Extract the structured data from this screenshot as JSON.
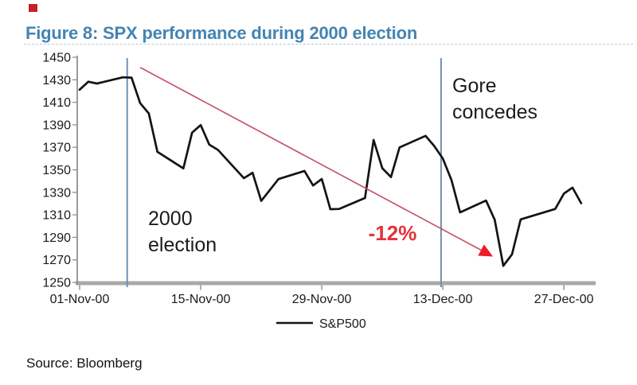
{
  "header": {
    "title": "Figure 8: SPX performance during 2000 election"
  },
  "footer": {
    "source": "Source: Bloomberg"
  },
  "legend": {
    "label": "S&P500"
  },
  "colors": {
    "title_blue": "#4484b2",
    "event_line_blue": "#6e93b4",
    "trend_red": "#c5566a",
    "arrow_red": "#ee1c25",
    "pct_label_red": "#e4323a",
    "axis_gray": "#a9a9a9",
    "axis_dark_gray": "#8f8f8f",
    "series_black": "#141414",
    "tick_text": "#1a1a1a",
    "annotation_text": "#1c1c1c"
  },
  "chart_data": {
    "type": "line",
    "title": "Figure 8: SPX performance during 2000 election",
    "xlabel": "",
    "ylabel": "",
    "ylim": [
      1250,
      1450
    ],
    "grid": false,
    "legend_position": "bottom",
    "yticks": [
      1450,
      1430,
      1410,
      1390,
      1370,
      1350,
      1330,
      1310,
      1290,
      1270,
      1250
    ],
    "xticks": [
      {
        "label": "01-Nov-00",
        "day": 0
      },
      {
        "label": "15-Nov-00",
        "day": 14
      },
      {
        "label": "29-Nov-00",
        "day": 28
      },
      {
        "label": "13-Dec-00",
        "day": 42
      },
      {
        "label": "27-Dec-00",
        "day": 56
      }
    ],
    "series": [
      {
        "name": "S&P500",
        "dates": [
          "01-Nov-00",
          "02-Nov-00",
          "03-Nov-00",
          "06-Nov-00",
          "07-Nov-00",
          "08-Nov-00",
          "09-Nov-00",
          "10-Nov-00",
          "13-Nov-00",
          "14-Nov-00",
          "15-Nov-00",
          "16-Nov-00",
          "17-Nov-00",
          "20-Nov-00",
          "21-Nov-00",
          "22-Nov-00",
          "24-Nov-00",
          "27-Nov-00",
          "28-Nov-00",
          "29-Nov-00",
          "30-Nov-00",
          "01-Dec-00",
          "04-Dec-00",
          "05-Dec-00",
          "06-Dec-00",
          "07-Dec-00",
          "08-Dec-00",
          "11-Dec-00",
          "12-Dec-00",
          "13-Dec-00",
          "14-Dec-00",
          "15-Dec-00",
          "18-Dec-00",
          "19-Dec-00",
          "20-Dec-00",
          "21-Dec-00",
          "22-Dec-00",
          "26-Dec-00",
          "27-Dec-00",
          "28-Dec-00",
          "29-Dec-00"
        ],
        "days": [
          0,
          1,
          2,
          5,
          6,
          7,
          8,
          9,
          12,
          13,
          14,
          15,
          16,
          19,
          20,
          21,
          23,
          26,
          27,
          28,
          29,
          30,
          33,
          34,
          35,
          36,
          37,
          40,
          41,
          42,
          43,
          44,
          47,
          48,
          49,
          50,
          51,
          55,
          56,
          57,
          58
        ],
        "values": [
          1421.2,
          1428.3,
          1426.7,
          1432.2,
          1431.9,
          1409.3,
          1400.1,
          1366.0,
          1351.3,
          1383.0,
          1389.8,
          1372.3,
          1367.7,
          1342.6,
          1347.4,
          1322.4,
          1341.8,
          1349.0,
          1336.1,
          1341.9,
          1315.0,
          1315.2,
          1325.0,
          1376.5,
          1351.5,
          1343.6,
          1369.9,
          1380.2,
          1371.2,
          1360.0,
          1340.9,
          1312.2,
          1322.7,
          1305.6,
          1264.7,
          1274.9,
          1306.0,
          1315.2,
          1328.9,
          1334.2,
          1320.3
        ]
      }
    ],
    "events": [
      {
        "label": "2000 election",
        "lines": [
          "2000",
          "election"
        ],
        "day": 5.5
      },
      {
        "label": "Gore concedes",
        "lines": [
          "Gore",
          "concedes"
        ],
        "day": 41.8
      }
    ],
    "trend": {
      "label": "-12%",
      "from_day": 7,
      "from_value": 1441,
      "to_day": 47.8,
      "to_value": 1273
    }
  }
}
